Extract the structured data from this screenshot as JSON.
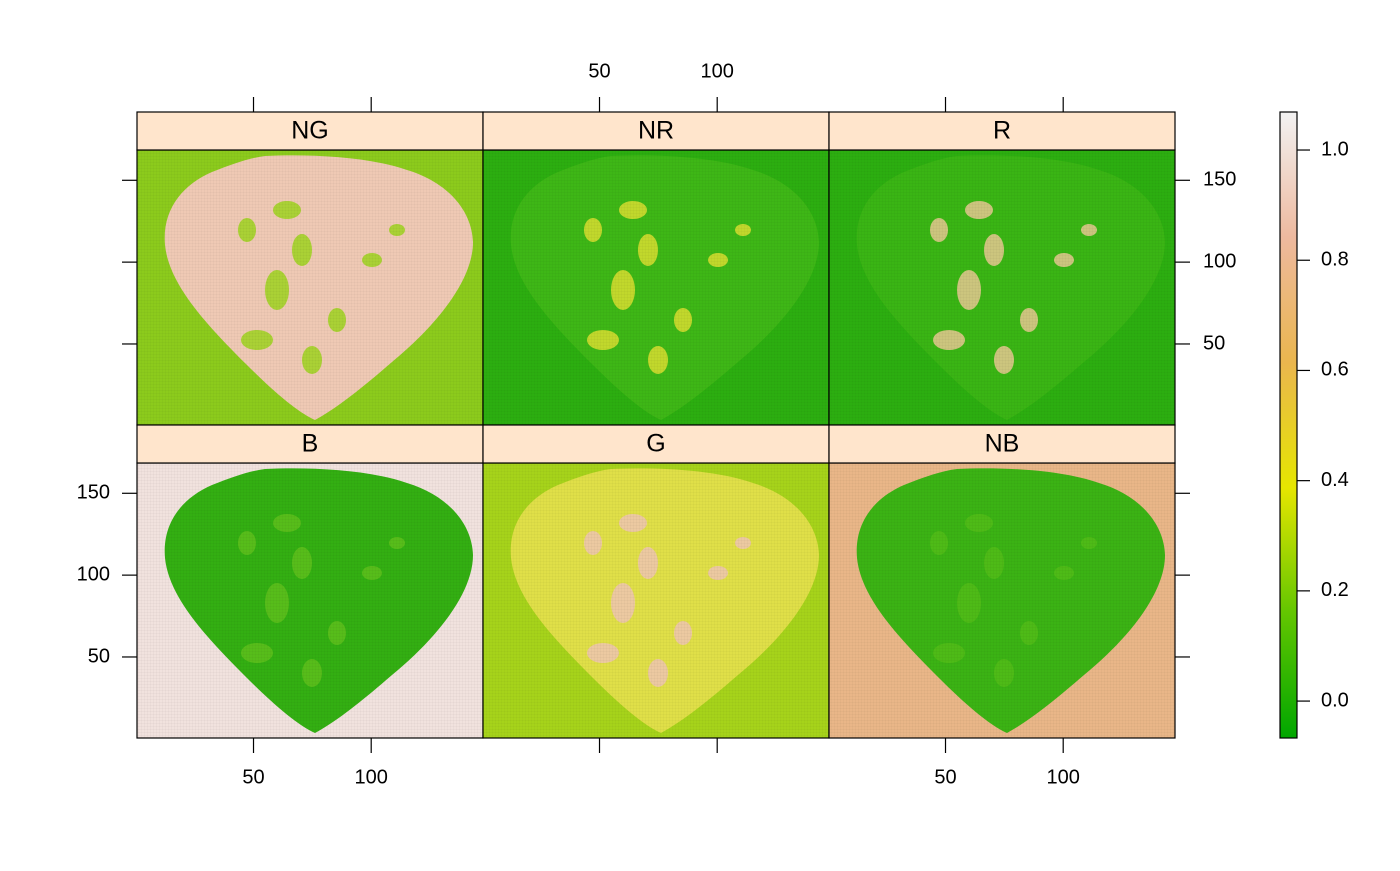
{
  "chart_data": {
    "type": "raster",
    "panels": [
      {
        "name": "NG",
        "background": "#8CCB1C",
        "leaf": "#EFC9B4",
        "spot": "#9ED21E"
      },
      {
        "name": "NR",
        "background": "#2CAE10",
        "leaf": "#3EB716",
        "spot": "#D8DE30"
      },
      {
        "name": "R",
        "background": "#2CAE10",
        "leaf": "#3AB514",
        "spot": "#E6C890"
      },
      {
        "name": "B",
        "background": "#F1E2DE",
        "leaf": "#33AF12",
        "spot": "#5EC01C"
      },
      {
        "name": "G",
        "background": "#A6D31A",
        "leaf": "#E0DF48",
        "spot": "#EDC6B2"
      },
      {
        "name": "NB",
        "background": "#E9B688",
        "leaf": "#3BB314",
        "spot": "#52BC18"
      }
    ],
    "xlim": [
      0.5,
      147.5
    ],
    "ylim": [
      0.5,
      168.5
    ],
    "xticks": [
      50,
      100
    ],
    "yticks": [
      50,
      100,
      150
    ],
    "zlim": [
      -0.067,
      1.069
    ],
    "zticks": [
      {
        "value": 0,
        "label": "0.0"
      },
      {
        "value": 0.2,
        "label": "0.2"
      },
      {
        "value": 0.4,
        "label": "0.4"
      },
      {
        "value": 0.6,
        "label": "0.6"
      },
      {
        "value": 0.8,
        "label": "0.8"
      },
      {
        "value": 1,
        "label": "1.0"
      }
    ],
    "colors": [
      "#00A600",
      "#63C600",
      "#E6E600",
      "#EAB64E",
      "#EEB99F",
      "#F2F2F2"
    ]
  }
}
